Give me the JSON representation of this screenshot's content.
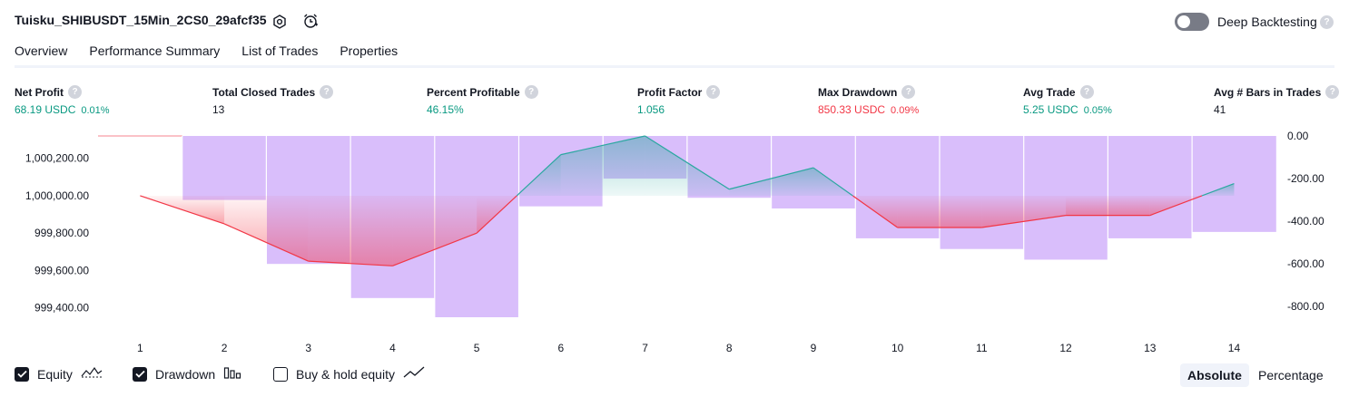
{
  "strategy_title": "Tuisku_SHIBUSDT_15Min_2CS0_29afcf35",
  "deep_backtesting_label": "Deep Backtesting",
  "help_glyph": "?",
  "tabs": [
    "Overview",
    "Performance Summary",
    "List of Trades",
    "Properties"
  ],
  "active_tab": "Overview",
  "metrics": [
    {
      "label": "Net Profit",
      "value": "68.19 USDC",
      "pct": "0.01%",
      "color": "green"
    },
    {
      "label": "Total Closed Trades",
      "value": "13",
      "pct": "",
      "color": "dark"
    },
    {
      "label": "Percent Profitable",
      "value": "46.15%",
      "pct": "",
      "color": "green"
    },
    {
      "label": "Profit Factor",
      "value": "1.056",
      "pct": "",
      "color": "green"
    },
    {
      "label": "Max Drawdown",
      "value": "850.33 USDC",
      "pct": "0.09%",
      "color": "red"
    },
    {
      "label": "Avg Trade",
      "value": "5.25 USDC",
      "pct": "0.05%",
      "color": "green"
    },
    {
      "label": "Avg # Bars in Trades",
      "value": "41",
      "pct": "",
      "color": "dark"
    }
  ],
  "legend": {
    "equity": {
      "label": "Equity",
      "checked": true
    },
    "drawdown": {
      "label": "Drawdown",
      "checked": true
    },
    "buy_hold": {
      "label": "Buy & hold equity",
      "checked": false
    }
  },
  "mode_buttons": {
    "absolute": "Absolute",
    "percentage": "Percentage",
    "active": "Absolute"
  },
  "chart_data": {
    "type": "line",
    "x": [
      1,
      2,
      3,
      4,
      5,
      6,
      7,
      8,
      9,
      10,
      11,
      12,
      13,
      14
    ],
    "x_tick_labels": [
      "1",
      "2",
      "3",
      "4",
      "5",
      "6",
      "7",
      "8",
      "9",
      "10",
      "11",
      "12",
      "13",
      "14"
    ],
    "series": [
      {
        "name": "Equity",
        "axis": "left",
        "color_up": "#2ba8a0",
        "color_down": "#f23645",
        "values": [
          1000000,
          999850,
          999650,
          999625,
          999800,
          1000220,
          1000320,
          1000035,
          1000150,
          999830,
          999830,
          999895,
          999895,
          1000065
        ]
      },
      {
        "name": "Drawdown",
        "type": "bar",
        "axis": "right",
        "color": "#c9a3fa",
        "values": [
          0,
          -300,
          -600,
          -760,
          -850,
          -330,
          -200,
          -290,
          -340,
          -480,
          -530,
          -580,
          -480,
          -450
        ]
      }
    ],
    "baseline_left": 1000000,
    "y_left_ticks": [
      "1,000,200.00",
      "1,000,000.00",
      "999,800.00",
      "999,600.00",
      "999,400.00"
    ],
    "y_left_tick_values": [
      1000200,
      1000000,
      999800,
      999600,
      999400
    ],
    "y_right_ticks": [
      "0.00",
      "-200.00",
      "-400.00",
      "-600.00",
      "-800.00"
    ],
    "y_right_tick_values": [
      0,
      -200,
      -400,
      -600,
      -800
    ],
    "ylim_left": [
      999350,
      1000320
    ],
    "ylim_right": [
      -850,
      0
    ],
    "grid": "vertical",
    "legend_position": "bottom-left"
  }
}
